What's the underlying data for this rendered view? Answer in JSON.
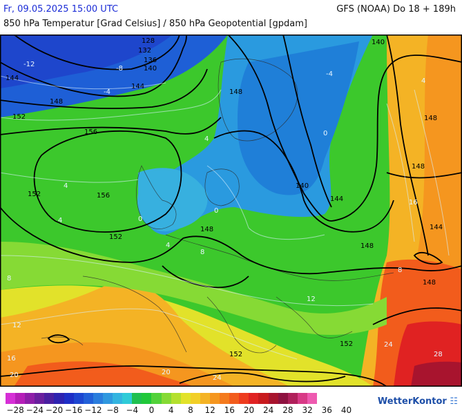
{
  "header": {
    "datetime": "Fr, 09.05.2025 15:00 UTC",
    "model_run": "GFS (NOAA) Do 18 + 189h",
    "subtitle": "850 hPa Temperatur [Grad Celsius] / 850 hPa Geopotential [gpdam]"
  },
  "geopotential_labels": [
    "128",
    "132",
    "136",
    "140",
    "144",
    "148",
    "152",
    "156",
    "140",
    "148",
    "144",
    "148",
    "148",
    "140",
    "144",
    "148",
    "148",
    "152",
    "152",
    "156",
    "152",
    "152",
    "148",
    "144"
  ],
  "temperature_labels": [
    "-12",
    "-8",
    "-4",
    "-4",
    "0",
    "0",
    "4",
    "4",
    "4",
    "4",
    "8",
    "8",
    "12",
    "16",
    "20",
    "20",
    "24",
    "24",
    "28",
    "4",
    "0",
    "8",
    "12",
    "16"
  ],
  "legend": {
    "tick_labels": [
      "−28",
      "−24",
      "−20",
      "−16",
      "−12",
      "−8",
      "−4",
      "0",
      "4",
      "8",
      "12",
      "16",
      "20",
      "24",
      "28",
      "32",
      "36",
      "40"
    ],
    "colors": [
      "#d62fd6",
      "#b51eb8",
      "#8e1ea8",
      "#6a1f9e",
      "#4a1fa0",
      "#2e22b0",
      "#1e2ec6",
      "#1d46d1",
      "#2260d8",
      "#2a7ddd",
      "#2f98df",
      "#33b4e0",
      "#2fcbd8",
      "#1fc050",
      "#20c83a",
      "#52d23a",
      "#86da35",
      "#b4e02e",
      "#e2e22a",
      "#f2cf26",
      "#f4b325",
      "#f5961f",
      "#f47a1d",
      "#f25c1c",
      "#ee3c1e",
      "#e02222",
      "#c81a1e",
      "#a8142e",
      "#8e1240",
      "#b0205a",
      "#d83a86",
      "#ee5ab0"
    ],
    "brand": "WetterKontor"
  }
}
